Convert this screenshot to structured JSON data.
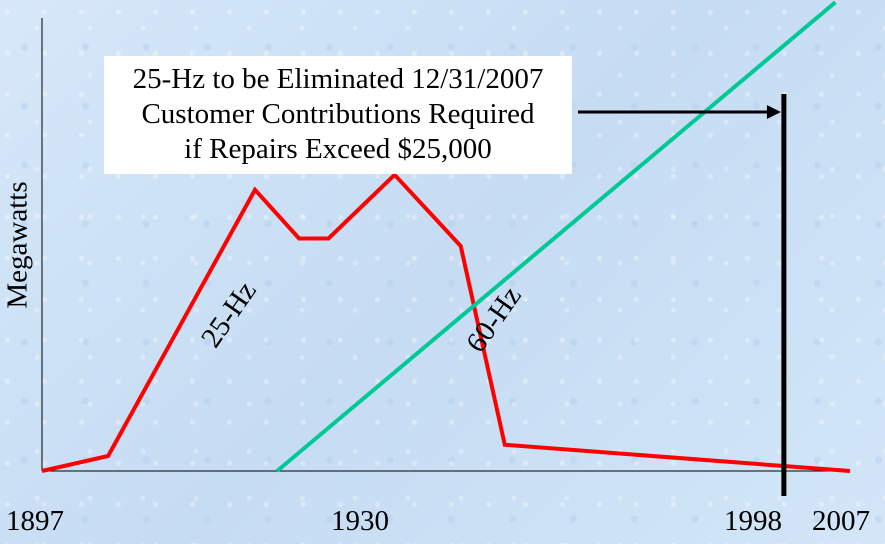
{
  "chart_data": {
    "type": "line",
    "xlabel": "",
    "ylabel": "Megawatts",
    "xlim": [
      1897,
      2007
    ],
    "x_ticks": [
      "1897",
      "1930",
      "1998",
      "2007"
    ],
    "series": [
      {
        "name": "25-Hz",
        "color": "#ff0000",
        "points": [
          [
            1897,
            0
          ],
          [
            1906,
            4
          ],
          [
            1926,
            75
          ],
          [
            1932,
            62
          ],
          [
            1936,
            62
          ],
          [
            1945,
            79
          ],
          [
            1954,
            60
          ],
          [
            1960,
            7
          ],
          [
            2007,
            0
          ]
        ]
      },
      {
        "name": "60-Hz",
        "color": "#00c896",
        "points": [
          [
            1929,
            0
          ],
          [
            2005,
            125
          ]
        ]
      }
    ],
    "marker_year": 1998,
    "annotation": [
      "25-Hz to be Eliminated 12/31/2007",
      "Customer Contributions Required",
      "if Repairs Exceed $25,000"
    ]
  }
}
